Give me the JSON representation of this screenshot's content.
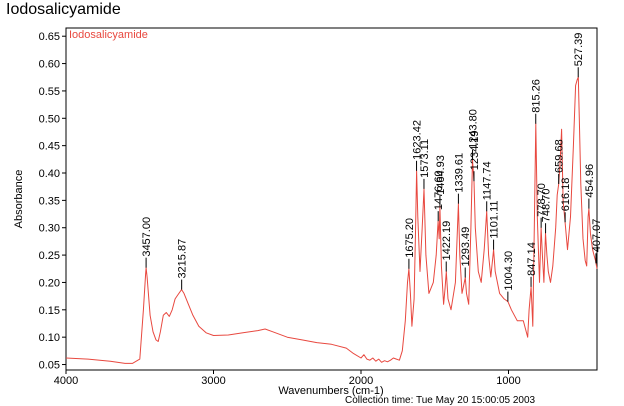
{
  "window": {
    "title": "Iodosalicyamide"
  },
  "footer": {
    "text": "Collection time: Tue May 20 15:00:05 2003"
  },
  "colors": {
    "spectrum": "#e8483f",
    "axis": "#000000",
    "peak_marker": "#000000"
  },
  "chart_data": {
    "type": "line",
    "xlabel": "Wavenumbers (cm-1)",
    "ylabel": "Absorbance",
    "xlim": [
      4000,
      400
    ],
    "x_reversed": true,
    "ylim": [
      0.04,
      0.665
    ],
    "x_ticks": [
      4000,
      3000,
      2000,
      1000
    ],
    "y_ticks": [
      0.05,
      0.1,
      0.15,
      0.2,
      0.25,
      0.3,
      0.35,
      0.4,
      0.45,
      0.5,
      0.55,
      0.6,
      0.65
    ],
    "y_tick_labels": [
      "0.05",
      "0.10",
      "0.15",
      "0.20",
      "0.25",
      "0.30",
      "0.35",
      "0.40",
      "0.45",
      "0.50",
      "0.55",
      "0.60",
      "0.65"
    ],
    "legend": {
      "entries": [
        "Iodosalicyamide"
      ],
      "placement": "top-left"
    },
    "grid": false,
    "series": [
      {
        "name": "Iodosalicyamide",
        "points": [
          [
            4000,
            0.062
          ],
          [
            3850,
            0.06
          ],
          [
            3700,
            0.056
          ],
          [
            3600,
            0.052
          ],
          [
            3550,
            0.052
          ],
          [
            3500,
            0.06
          ],
          [
            3475,
            0.15
          ],
          [
            3460,
            0.215
          ],
          [
            3457,
            0.227
          ],
          [
            3450,
            0.21
          ],
          [
            3430,
            0.14
          ],
          [
            3410,
            0.11
          ],
          [
            3390,
            0.095
          ],
          [
            3375,
            0.092
          ],
          [
            3360,
            0.11
          ],
          [
            3340,
            0.14
          ],
          [
            3320,
            0.145
          ],
          [
            3300,
            0.138
          ],
          [
            3280,
            0.15
          ],
          [
            3260,
            0.17
          ],
          [
            3240,
            0.178
          ],
          [
            3216,
            0.187
          ],
          [
            3200,
            0.18
          ],
          [
            3170,
            0.16
          ],
          [
            3140,
            0.14
          ],
          [
            3100,
            0.12
          ],
          [
            3050,
            0.108
          ],
          [
            3000,
            0.103
          ],
          [
            2900,
            0.104
          ],
          [
            2800,
            0.108
          ],
          [
            2700,
            0.112
          ],
          [
            2650,
            0.115
          ],
          [
            2600,
            0.11
          ],
          [
            2500,
            0.1
          ],
          [
            2400,
            0.095
          ],
          [
            2300,
            0.09
          ],
          [
            2200,
            0.087
          ],
          [
            2100,
            0.08
          ],
          [
            2050,
            0.07
          ],
          [
            2000,
            0.062
          ],
          [
            1980,
            0.068
          ],
          [
            1960,
            0.06
          ],
          [
            1940,
            0.058
          ],
          [
            1920,
            0.062
          ],
          [
            1900,
            0.056
          ],
          [
            1880,
            0.06
          ],
          [
            1860,
            0.054
          ],
          [
            1840,
            0.057
          ],
          [
            1820,
            0.055
          ],
          [
            1800,
            0.058
          ],
          [
            1780,
            0.062
          ],
          [
            1760,
            0.06
          ],
          [
            1740,
            0.058
          ],
          [
            1720,
            0.075
          ],
          [
            1700,
            0.13
          ],
          [
            1685,
            0.2
          ],
          [
            1675,
            0.225
          ],
          [
            1665,
            0.18
          ],
          [
            1655,
            0.12
          ],
          [
            1640,
            0.17
          ],
          [
            1630,
            0.3
          ],
          [
            1623,
            0.404
          ],
          [
            1615,
            0.32
          ],
          [
            1600,
            0.22
          ],
          [
            1585,
            0.3
          ],
          [
            1573,
            0.371
          ],
          [
            1560,
            0.25
          ],
          [
            1540,
            0.18
          ],
          [
            1510,
            0.2
          ],
          [
            1490,
            0.25
          ],
          [
            1477,
            0.312
          ],
          [
            1470,
            0.28
          ],
          [
            1465,
            0.34
          ],
          [
            1455,
            0.23
          ],
          [
            1440,
            0.16
          ],
          [
            1430,
            0.19
          ],
          [
            1422,
            0.22
          ],
          [
            1410,
            0.17
          ],
          [
            1390,
            0.15
          ],
          [
            1360,
            0.2
          ],
          [
            1340,
            0.344
          ],
          [
            1330,
            0.25
          ],
          [
            1315,
            0.18
          ],
          [
            1300,
            0.2
          ],
          [
            1293,
            0.209
          ],
          [
            1285,
            0.18
          ],
          [
            1270,
            0.16
          ],
          [
            1255,
            0.3
          ],
          [
            1244,
            0.424
          ],
          [
            1234,
            0.385
          ],
          [
            1225,
            0.3
          ],
          [
            1205,
            0.22
          ],
          [
            1185,
            0.2
          ],
          [
            1165,
            0.26
          ],
          [
            1148,
            0.33
          ],
          [
            1135,
            0.25
          ],
          [
            1120,
            0.21
          ],
          [
            1101,
            0.26
          ],
          [
            1090,
            0.22
          ],
          [
            1060,
            0.18
          ],
          [
            1030,
            0.17
          ],
          [
            1004,
            0.165
          ],
          [
            980,
            0.15
          ],
          [
            940,
            0.13
          ],
          [
            900,
            0.13
          ],
          [
            870,
            0.1
          ],
          [
            860,
            0.15
          ],
          [
            847,
            0.192
          ],
          [
            835,
            0.12
          ],
          [
            825,
            0.3
          ],
          [
            815,
            0.49
          ],
          [
            805,
            0.32
          ],
          [
            790,
            0.2
          ],
          [
            779,
            0.3
          ],
          [
            770,
            0.25
          ],
          [
            760,
            0.2
          ],
          [
            749,
            0.29
          ],
          [
            740,
            0.25
          ],
          [
            730,
            0.22
          ],
          [
            715,
            0.2
          ],
          [
            700,
            0.23
          ],
          [
            680,
            0.3
          ],
          [
            670,
            0.36
          ],
          [
            660,
            0.38
          ],
          [
            650,
            0.42
          ],
          [
            640,
            0.48
          ],
          [
            630,
            0.35
          ],
          [
            616,
            0.31
          ],
          [
            600,
            0.26
          ],
          [
            580,
            0.32
          ],
          [
            560,
            0.45
          ],
          [
            545,
            0.56
          ],
          [
            535,
            0.57
          ],
          [
            527,
            0.575
          ],
          [
            520,
            0.5
          ],
          [
            510,
            0.38
          ],
          [
            495,
            0.28
          ],
          [
            480,
            0.24
          ],
          [
            470,
            0.23
          ],
          [
            460,
            0.32
          ],
          [
            455,
            0.335
          ],
          [
            445,
            0.29
          ],
          [
            430,
            0.26
          ],
          [
            420,
            0.25
          ],
          [
            410,
            0.24
          ],
          [
            407,
            0.235
          ],
          [
            400,
            0.225
          ]
        ]
      }
    ],
    "peaks": [
      {
        "x": 3457.0,
        "y": 0.227,
        "label": "3457.00"
      },
      {
        "x": 3215.87,
        "y": 0.187,
        "label": "3215.87"
      },
      {
        "x": 1675.2,
        "y": 0.225,
        "label": "1675.20"
      },
      {
        "x": 1623.42,
        "y": 0.404,
        "label": "1623.42"
      },
      {
        "x": 1573.11,
        "y": 0.371,
        "label": "1573.11"
      },
      {
        "x": 1476.6,
        "y": 0.312,
        "label": "1476.60"
      },
      {
        "x": 1464.93,
        "y": 0.34,
        "label": "1464.93"
      },
      {
        "x": 1422.19,
        "y": 0.22,
        "label": "1422.19"
      },
      {
        "x": 1339.61,
        "y": 0.344,
        "label": "1339.61"
      },
      {
        "x": 1293.49,
        "y": 0.209,
        "label": "1293.49"
      },
      {
        "x": 1243.8,
        "y": 0.424,
        "label": "1243.80"
      },
      {
        "x": 1234.19,
        "y": 0.385,
        "label": "1234.19"
      },
      {
        "x": 1147.74,
        "y": 0.33,
        "label": "1147.74"
      },
      {
        "x": 1101.11,
        "y": 0.26,
        "label": "1101.11"
      },
      {
        "x": 1004.3,
        "y": 0.165,
        "label": "1004.30"
      },
      {
        "x": 847.14,
        "y": 0.192,
        "label": "847.14"
      },
      {
        "x": 815.26,
        "y": 0.49,
        "label": "815.26"
      },
      {
        "x": 778.7,
        "y": 0.3,
        "label": "778.70"
      },
      {
        "x": 748.7,
        "y": 0.29,
        "label": "748.70"
      },
      {
        "x": 659.68,
        "y": 0.38,
        "label": "659.68"
      },
      {
        "x": 616.18,
        "y": 0.31,
        "label": "616.18"
      },
      {
        "x": 527.39,
        "y": 0.575,
        "label": "527.39"
      },
      {
        "x": 454.96,
        "y": 0.335,
        "label": "454.96"
      },
      {
        "x": 407.07,
        "y": 0.235,
        "label": "407.07"
      }
    ]
  }
}
